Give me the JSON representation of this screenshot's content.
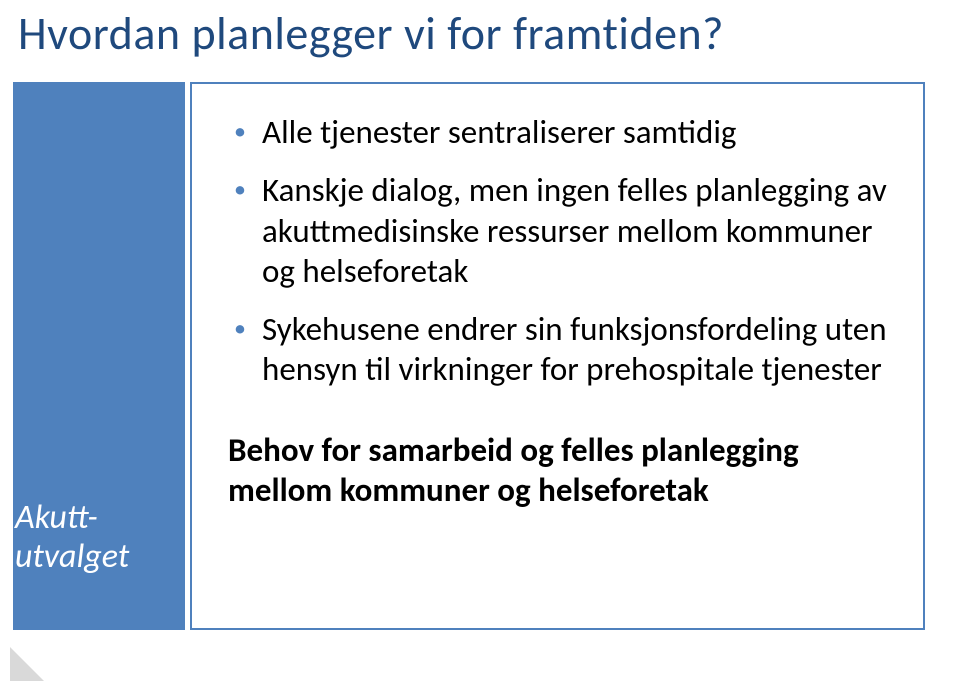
{
  "title": {
    "text": "Hvordan planlegger vi for framtiden?",
    "color": "#1f497d"
  },
  "accent_color": "#4f81bd",
  "box_border_color": "#4f81bd",
  "bullet_color": "#4f81bd",
  "body_text_color": "#000000",
  "bullets": [
    "Alle tjenester sentraliserer samtidig",
    "Kanskje dialog, men ingen felles planlegging av akuttmedisinske ressurser mellom kommuner og helseforetak",
    "Sykehusene endrer sin funksjonsfordeling uten hensyn til virkninger for prehospitale tjenester"
  ],
  "bold_text": "Behov for samarbeid og felles planlegging mellom kommuner og helseforetak",
  "sidebar_label_line1": "Akutt-",
  "sidebar_label_line2": "utvalget",
  "corner_triangle": {
    "size": 34,
    "color": "#d9d9d9"
  }
}
